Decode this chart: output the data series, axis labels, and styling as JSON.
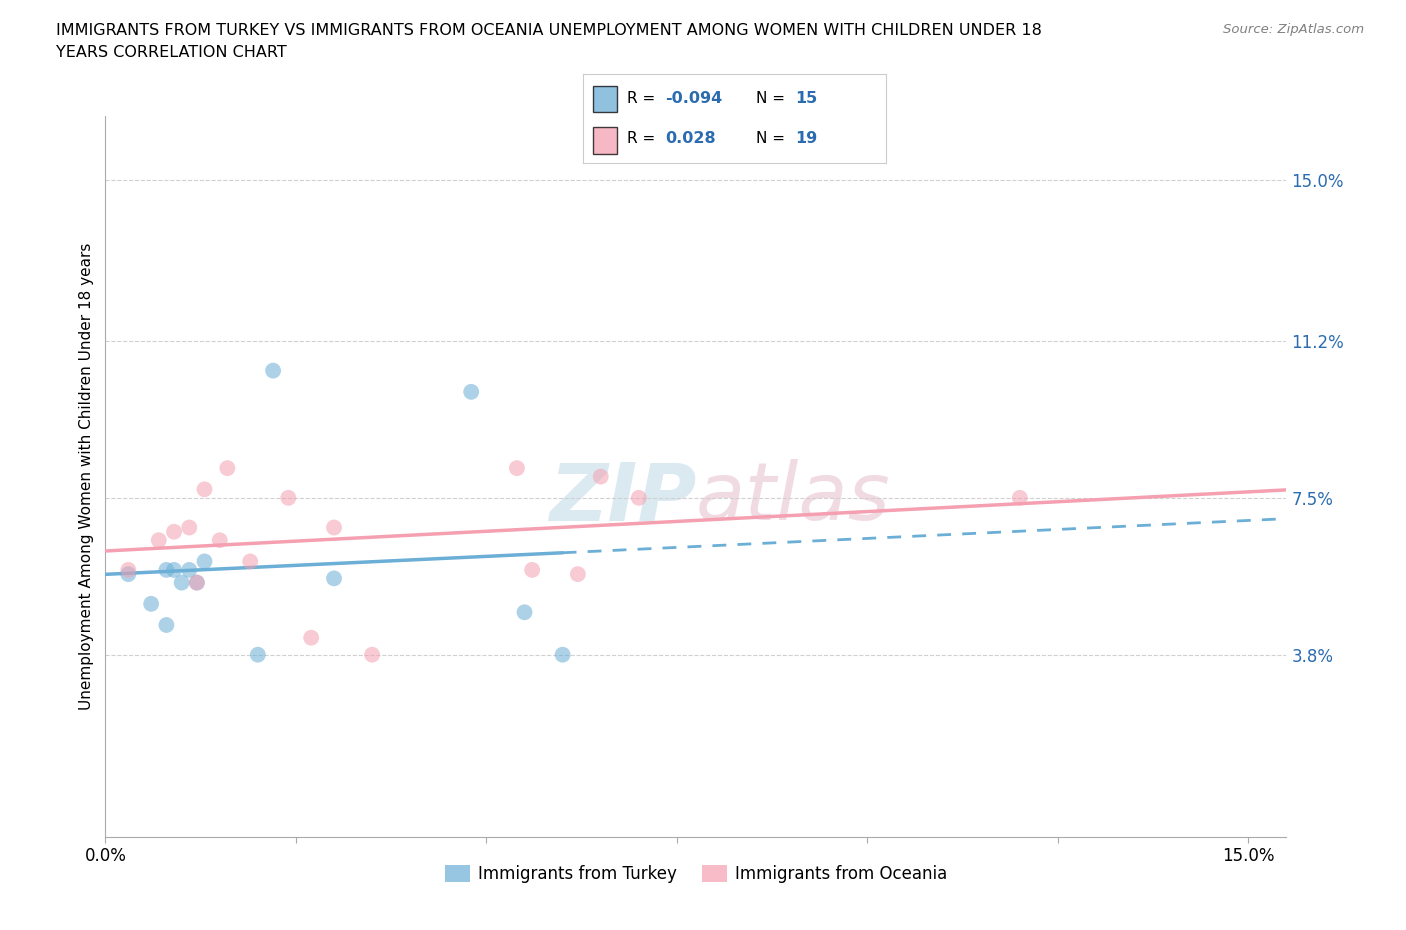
{
  "title_line1": "IMMIGRANTS FROM TURKEY VS IMMIGRANTS FROM OCEANIA UNEMPLOYMENT AMONG WOMEN WITH CHILDREN UNDER 18",
  "title_line2": "YEARS CORRELATION CHART",
  "source": "Source: ZipAtlas.com",
  "ylabel": "Unemployment Among Women with Children Under 18 years",
  "xlim": [
    0.0,
    0.155
  ],
  "ylim": [
    -0.005,
    0.165
  ],
  "yticks": [
    0.038,
    0.075,
    0.112,
    0.15
  ],
  "ytick_labels": [
    "3.8%",
    "7.5%",
    "11.2%",
    "15.0%"
  ],
  "xtick_vals": [
    0.0,
    0.025,
    0.05,
    0.075,
    0.1,
    0.125,
    0.15
  ],
  "xtick_show": [
    0.0,
    0.15
  ],
  "xtick_labels": [
    "0.0%",
    "15.0%"
  ],
  "turkey_color": "#6baed6",
  "oceania_color": "#f4a0b0",
  "turkey_R": -0.094,
  "turkey_N": 15,
  "oceania_R": 0.028,
  "oceania_N": 19,
  "turkey_x": [
    0.003,
    0.006,
    0.008,
    0.008,
    0.009,
    0.01,
    0.011,
    0.012,
    0.013,
    0.02,
    0.022,
    0.03,
    0.048,
    0.055,
    0.06
  ],
  "turkey_y": [
    0.057,
    0.05,
    0.058,
    0.045,
    0.058,
    0.055,
    0.058,
    0.055,
    0.06,
    0.038,
    0.105,
    0.056,
    0.1,
    0.048,
    0.038
  ],
  "oceania_x": [
    0.003,
    0.007,
    0.009,
    0.011,
    0.012,
    0.013,
    0.015,
    0.016,
    0.019,
    0.024,
    0.027,
    0.03,
    0.035,
    0.054,
    0.056,
    0.062,
    0.065,
    0.07,
    0.12
  ],
  "oceania_y": [
    0.058,
    0.065,
    0.067,
    0.068,
    0.055,
    0.077,
    0.065,
    0.082,
    0.06,
    0.075,
    0.042,
    0.068,
    0.038,
    0.082,
    0.058,
    0.057,
    0.08,
    0.075,
    0.075
  ],
  "background_color": "#ffffff",
  "grid_color": "#d0d0d0",
  "marker_size": 130,
  "marker_alpha": 0.55,
  "legend_turkey_label": "Immigrants from Turkey",
  "legend_oceania_label": "Immigrants from Oceania",
  "watermark_color": "#d8e8f0",
  "watermark_color2": "#f0d8e0"
}
